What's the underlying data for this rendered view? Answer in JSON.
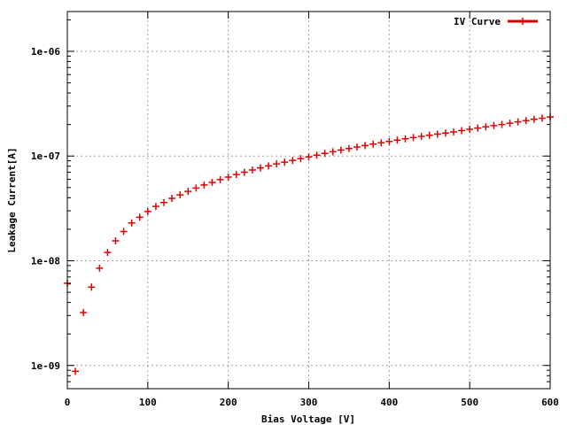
{
  "chart_data": {
    "type": "scatter",
    "title": "",
    "xlabel": "Bias Voltage [V]",
    "ylabel": "Leakage Current[A]",
    "xlim": [
      0,
      600
    ],
    "ylim": [
      6e-10,
      2.4e-06
    ],
    "yscale": "log",
    "grid": true,
    "legend_position": "top-right",
    "x_ticks": [
      {
        "value": 0,
        "label": "0"
      },
      {
        "value": 100,
        "label": "100"
      },
      {
        "value": 200,
        "label": "200"
      },
      {
        "value": 300,
        "label": "300"
      },
      {
        "value": 400,
        "label": "400"
      },
      {
        "value": 500,
        "label": "500"
      },
      {
        "value": 600,
        "label": "600"
      }
    ],
    "y_ticks": [
      {
        "value": 1e-09,
        "label": "1e-09"
      },
      {
        "value": 1e-08,
        "label": "1e-08"
      },
      {
        "value": 1e-07,
        "label": "1e-07"
      },
      {
        "value": 1e-06,
        "label": "1e-06"
      }
    ],
    "series": [
      {
        "name": "IV Curve",
        "color": "#e00000",
        "marker": "plus",
        "x": [
          0,
          10,
          20,
          30,
          40,
          50,
          60,
          70,
          80,
          90,
          100,
          110,
          120,
          130,
          140,
          150,
          160,
          170,
          180,
          190,
          200,
          210,
          220,
          230,
          240,
          250,
          260,
          270,
          280,
          290,
          300,
          310,
          320,
          330,
          340,
          350,
          360,
          370,
          380,
          390,
          400,
          410,
          420,
          430,
          440,
          450,
          460,
          470,
          480,
          490,
          500,
          510,
          520,
          530,
          540,
          550,
          560,
          570,
          580,
          590,
          600
        ],
        "y": [
          6.1e-09,
          8.8e-10,
          3.2e-09,
          5.6e-09,
          8.5e-09,
          1.2e-08,
          1.55e-08,
          1.9e-08,
          2.3e-08,
          2.6e-08,
          2.95e-08,
          3.3e-08,
          3.6e-08,
          3.95e-08,
          4.25e-08,
          4.6e-08,
          4.95e-08,
          5.3e-08,
          5.6e-08,
          5.95e-08,
          6.3e-08,
          6.65e-08,
          7e-08,
          7.35e-08,
          7.7e-08,
          8.05e-08,
          8.4e-08,
          8.75e-08,
          9.1e-08,
          9.45e-08,
          9.8e-08,
          1.02e-07,
          1.06e-07,
          1.1e-07,
          1.14e-07,
          1.18e-07,
          1.22e-07,
          1.26e-07,
          1.3e-07,
          1.34e-07,
          1.38e-07,
          1.42e-07,
          1.46e-07,
          1.5e-07,
          1.54e-07,
          1.58e-07,
          1.62e-07,
          1.66e-07,
          1.7e-07,
          1.75e-07,
          1.8e-07,
          1.85e-07,
          1.9e-07,
          1.95e-07,
          2e-07,
          2.06e-07,
          2.12e-07,
          2.18e-07,
          2.24e-07,
          2.3e-07,
          2.36e-07
        ]
      }
    ]
  }
}
